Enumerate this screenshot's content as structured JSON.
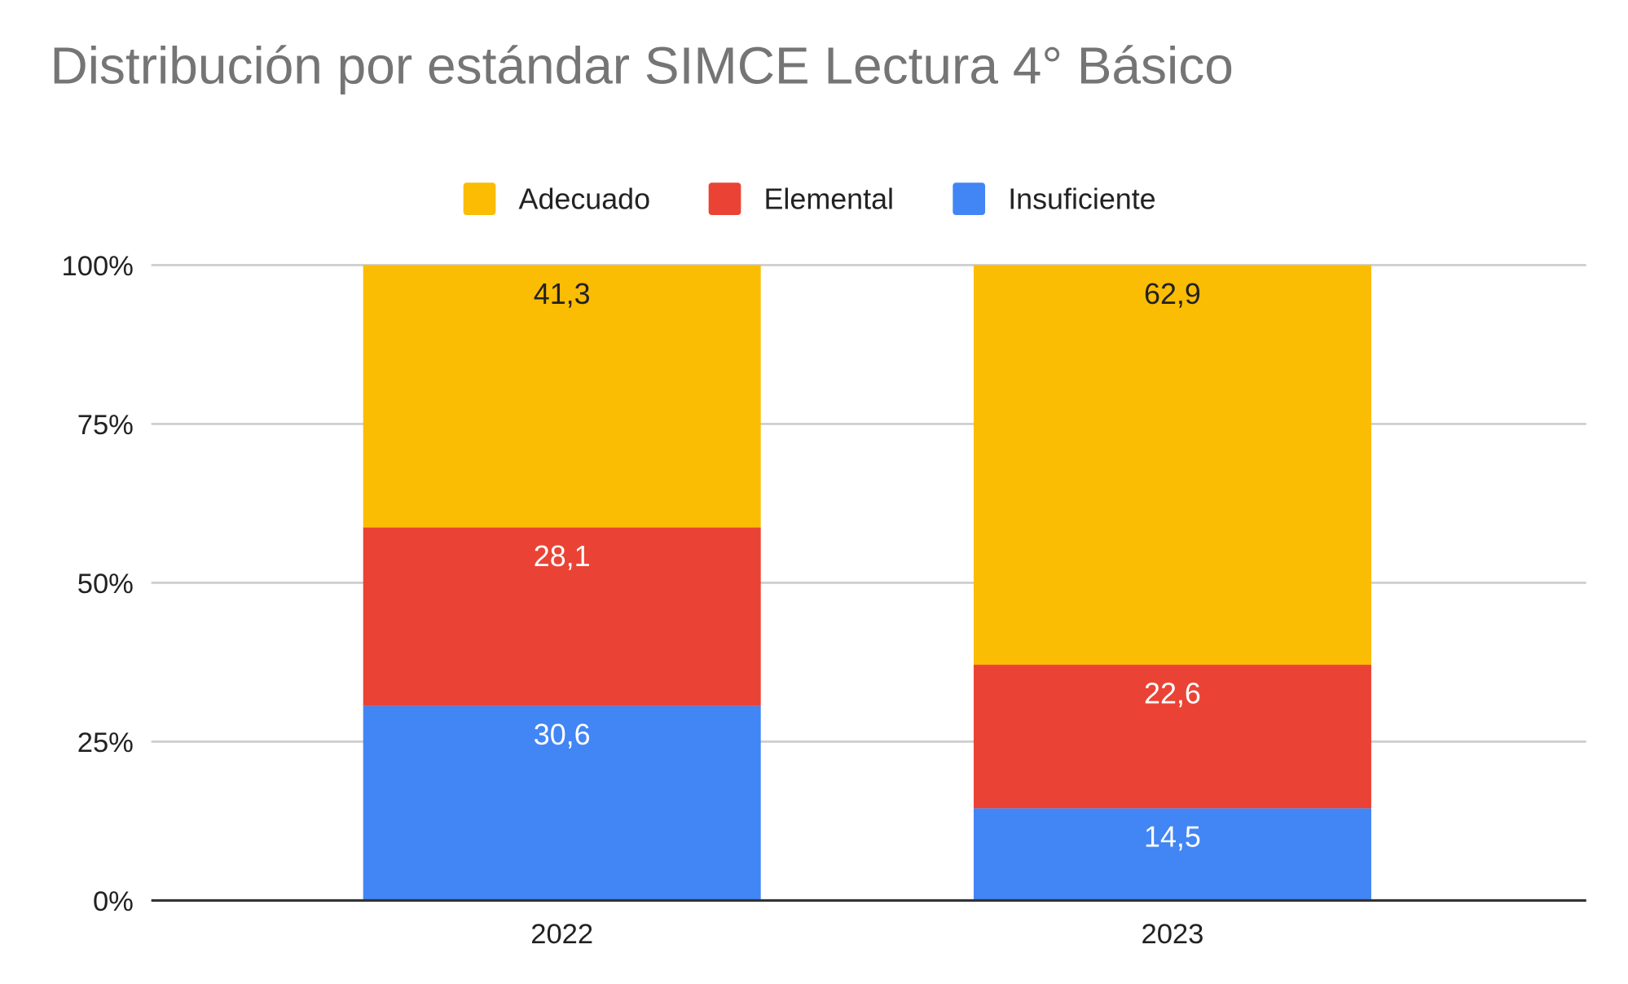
{
  "chart_data": {
    "type": "bar",
    "stacked": "percent",
    "title": "Distribución por estándar SIMCE Lectura 4° Básico",
    "xlabel": "",
    "ylabel": "",
    "categories": [
      "2022",
      "2023"
    ],
    "series": [
      {
        "name": "Insuficiente",
        "color": "#4285f4",
        "values": [
          30.6,
          14.5
        ],
        "labels": [
          "30,6",
          "14,5"
        ],
        "label_color": "#ffffff"
      },
      {
        "name": "Elemental",
        "color": "#ea4335",
        "values": [
          28.1,
          22.6
        ],
        "labels": [
          "28,1",
          "22,6"
        ],
        "label_color": "#ffffff"
      },
      {
        "name": "Adecuado",
        "color": "#fbbc04",
        "values": [
          41.3,
          62.9
        ],
        "labels": [
          "41,3",
          "62,9"
        ],
        "label_color": "#222222"
      }
    ],
    "legend_order": [
      "Adecuado",
      "Elemental",
      "Insuficiente"
    ],
    "legend_position": "top",
    "ylim": [
      0,
      100
    ],
    "yticks": [
      0,
      25,
      50,
      75,
      100
    ],
    "ytick_labels": [
      "0%",
      "25%",
      "50%",
      "75%",
      "100%"
    ],
    "grid": true
  }
}
